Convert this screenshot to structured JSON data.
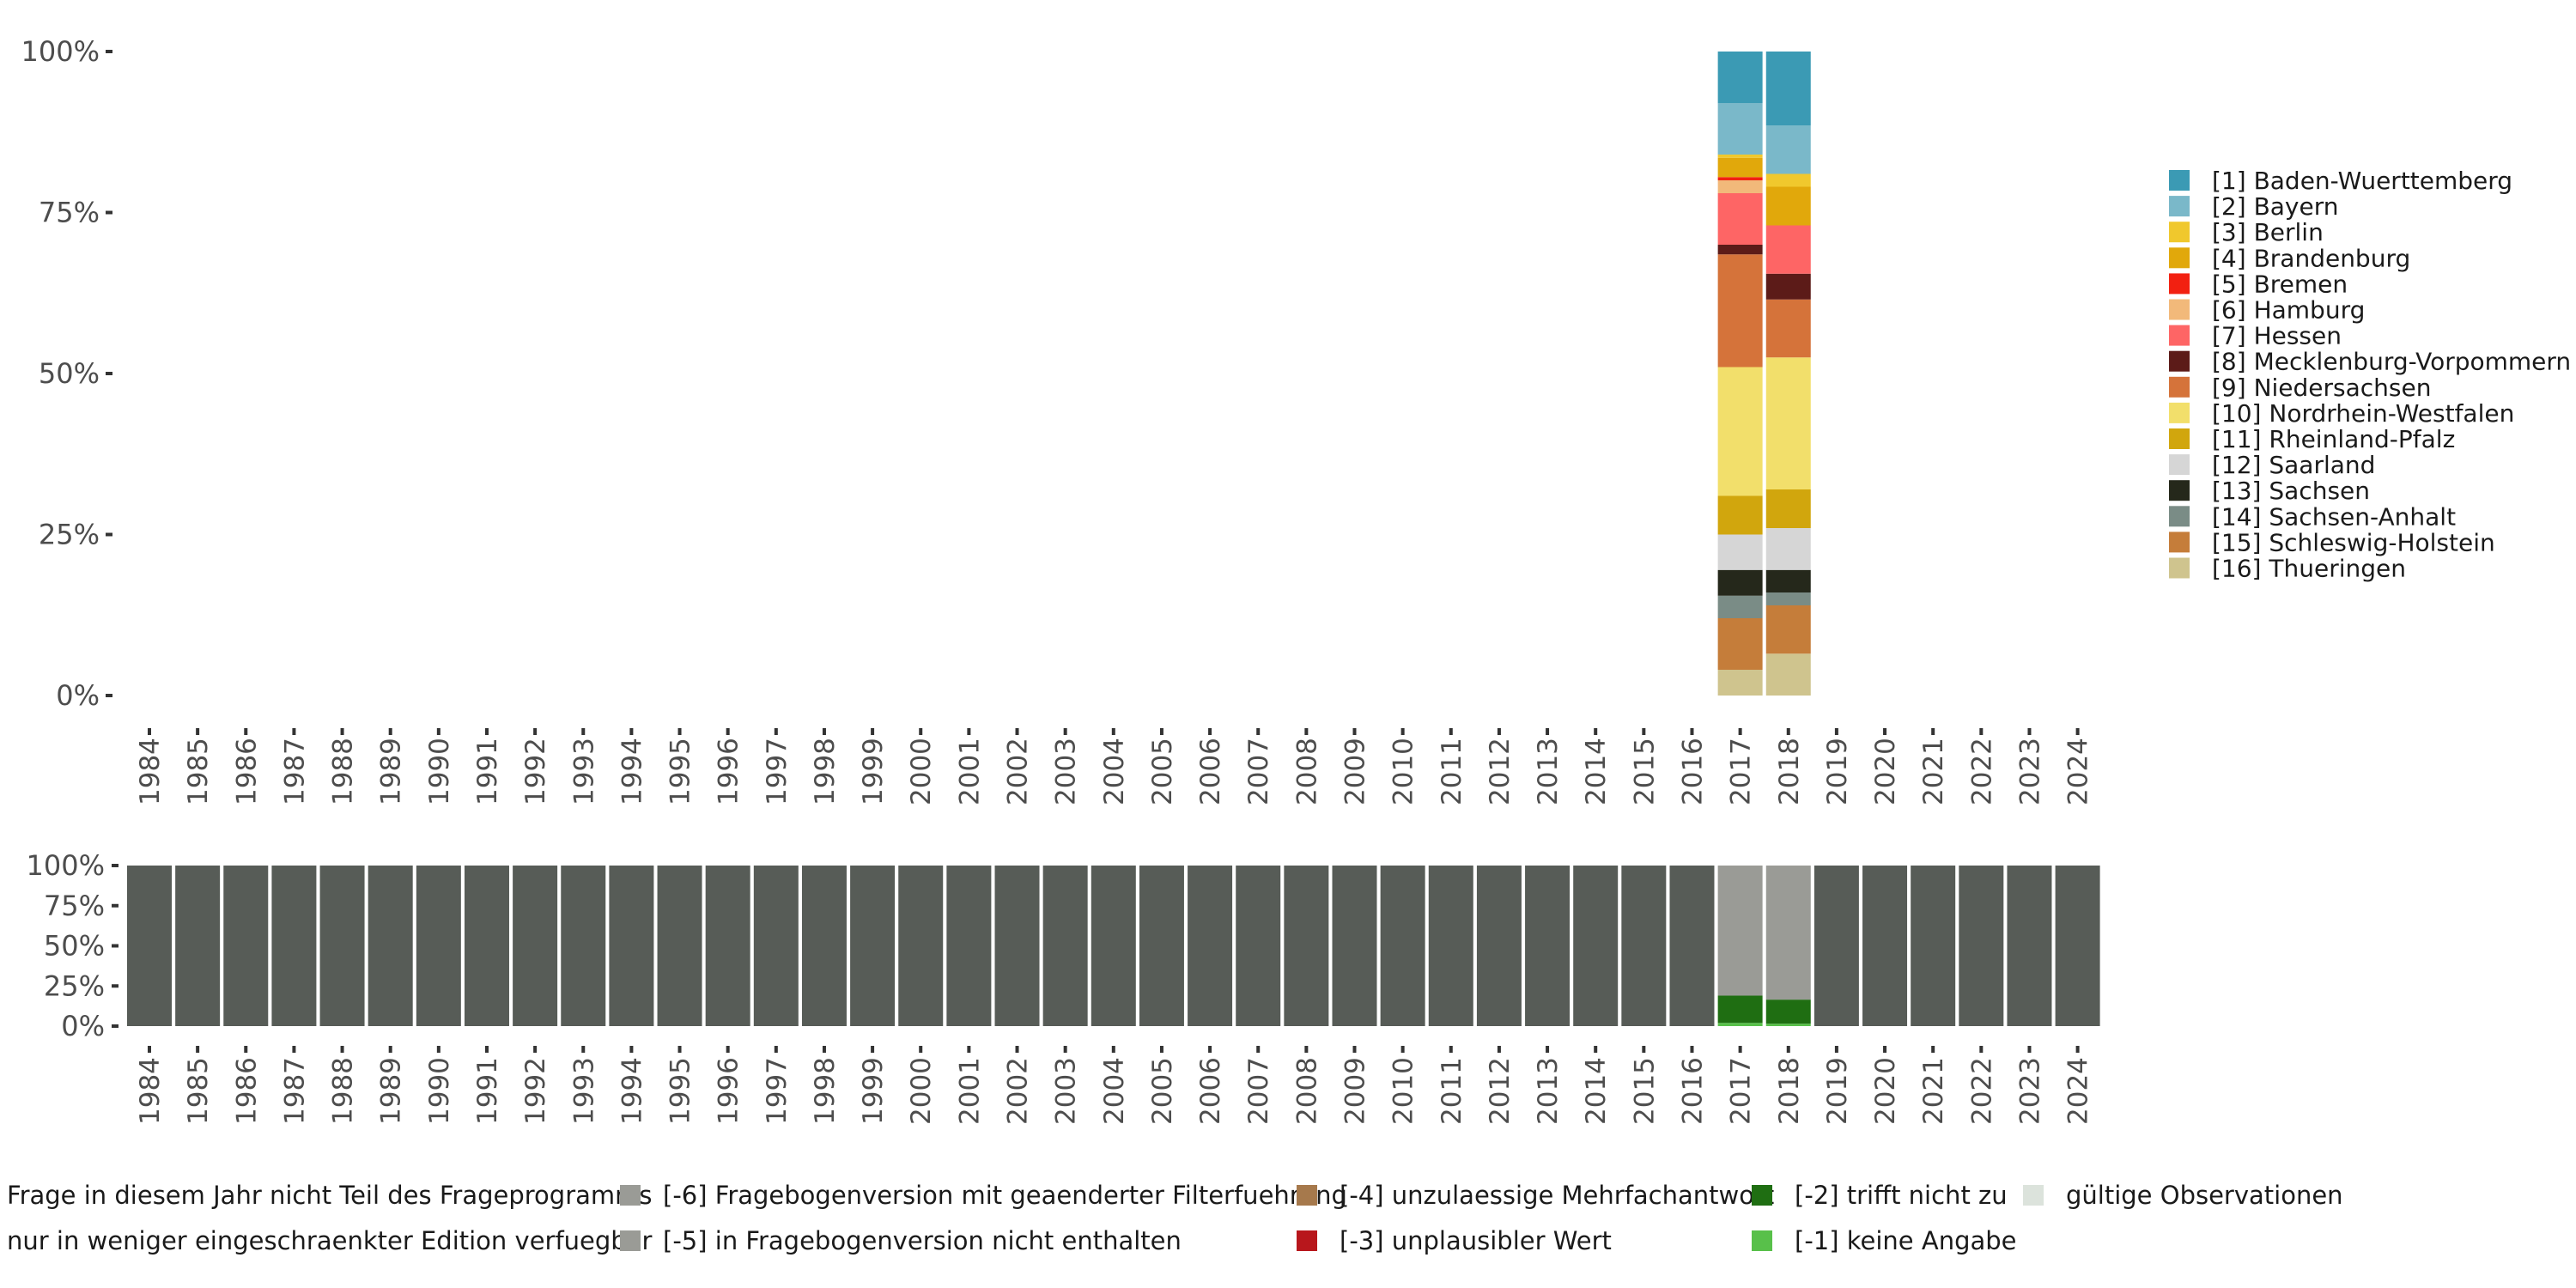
{
  "chart_data": [
    {
      "name": "top",
      "type": "bar",
      "stacked": true,
      "ylim": [
        0,
        100
      ],
      "y_ticks": [
        "0%",
        "25%",
        "50%",
        "75%",
        "100%"
      ],
      "categories": [
        "1984",
        "1985",
        "1986",
        "1987",
        "1988",
        "1989",
        "1990",
        "1991",
        "1992",
        "1993",
        "1994",
        "1995",
        "1996",
        "1997",
        "1998",
        "1999",
        "2000",
        "2001",
        "2002",
        "2003",
        "2004",
        "2005",
        "2006",
        "2007",
        "2008",
        "2009",
        "2010",
        "2011",
        "2012",
        "2013",
        "2014",
        "2015",
        "2016",
        "2017",
        "2018",
        "2019",
        "2020",
        "2021",
        "2022",
        "2023",
        "2024"
      ],
      "series": [
        {
          "name": "[16] Thueringen",
          "color": "#cfc48e",
          "values": {
            "2017": 4.0,
            "2018": 6.5
          }
        },
        {
          "name": "[15] Schleswig-Holstein",
          "color": "#c57d3a",
          "values": {
            "2017": 8.0,
            "2018": 7.5
          }
        },
        {
          "name": "[14] Sachsen-Anhalt",
          "color": "#7a8c86",
          "values": {
            "2017": 3.5,
            "2018": 2.0
          }
        },
        {
          "name": "[13] Sachsen",
          "color": "#25281b",
          "values": {
            "2017": 4.0,
            "2018": 3.5
          }
        },
        {
          "name": "[12] Saarland",
          "color": "#d6d6d6",
          "values": {
            "2017": 5.5,
            "2018": 6.5
          }
        },
        {
          "name": "[11] Rheinland-Pfalz",
          "color": "#d1a60d",
          "values": {
            "2017": 6.0,
            "2018": 6.0
          }
        },
        {
          "name": "[10] Nordrhein-Westfalen",
          "color": "#f2df6b",
          "values": {
            "2017": 20.0,
            "2018": 20.5
          }
        },
        {
          "name": "[9] Niedersachsen",
          "color": "#d5733a",
          "values": {
            "2017": 17.5,
            "2018": 9.0
          }
        },
        {
          "name": "[8] Mecklenburg-Vorpommern",
          "color": "#5c1b18",
          "values": {
            "2017": 1.5,
            "2018": 4.0
          }
        },
        {
          "name": "[7] Hessen",
          "color": "#fe6565",
          "values": {
            "2017": 8.0,
            "2018": 7.5
          }
        },
        {
          "name": "[6] Hamburg",
          "color": "#f2b97a",
          "values": {
            "2017": 2.0,
            "2018": 0.0
          }
        },
        {
          "name": "[5] Bremen",
          "color": "#f22011",
          "values": {
            "2017": 0.5,
            "2018": 0.0
          }
        },
        {
          "name": "[4] Brandenburg",
          "color": "#e1a80b",
          "values": {
            "2017": 3.0,
            "2018": 6.0
          }
        },
        {
          "name": "[3] Berlin",
          "color": "#f0c82d",
          "values": {
            "2017": 0.5,
            "2018": 2.0
          }
        },
        {
          "name": "[2] Bayern",
          "color": "#7ab8c9",
          "values": {
            "2017": 8.0,
            "2018": 7.5
          }
        },
        {
          "name": "[1] Baden-Wuerttemberg",
          "color": "#3b9ab4",
          "values": {
            "2017": 8.0,
            "2018": 11.5
          }
        }
      ]
    },
    {
      "name": "bottom",
      "type": "bar",
      "stacked": true,
      "ylim": [
        0,
        100
      ],
      "y_ticks": [
        "0%",
        "25%",
        "50%",
        "75%",
        "100%"
      ],
      "categories": [
        "1984",
        "1985",
        "1986",
        "1987",
        "1988",
        "1989",
        "1990",
        "1991",
        "1992",
        "1993",
        "1994",
        "1995",
        "1996",
        "1997",
        "1998",
        "1999",
        "2000",
        "2001",
        "2002",
        "2003",
        "2004",
        "2005",
        "2006",
        "2007",
        "2008",
        "2009",
        "2010",
        "2011",
        "2012",
        "2013",
        "2014",
        "2015",
        "2016",
        "2017",
        "2018",
        "2019",
        "2020",
        "2021",
        "2022",
        "2023",
        "2024"
      ],
      "default_stack": [
        {
          "series": "Frage in diesem Jahr nicht Teil des Frageprogramms",
          "value": 100
        }
      ],
      "stacks": {
        "2017": [
          {
            "series": "[-1] keine Angabe",
            "value": 2
          },
          {
            "series": "[-2] trifft nicht zu",
            "value": 17
          },
          {
            "series": "[-5] in Fragebogenversion nicht enthalten",
            "value": 81
          }
        ],
        "2018": [
          {
            "series": "[-1] keine Angabe",
            "value": 1.5
          },
          {
            "series": "[-2] trifft nicht zu",
            "value": 15
          },
          {
            "series": "[-5] in Fragebogenversion nicht enthalten",
            "value": 83.5
          }
        ]
      }
    }
  ],
  "legend_top": [
    {
      "label": "[1] Baden-Wuerttemberg",
      "color": "#3b9ab4"
    },
    {
      "label": "[2] Bayern",
      "color": "#7ab8c9"
    },
    {
      "label": "[3] Berlin",
      "color": "#f0c82d"
    },
    {
      "label": "[4] Brandenburg",
      "color": "#e1a80b"
    },
    {
      "label": "[5] Bremen",
      "color": "#f22011"
    },
    {
      "label": "[6] Hamburg",
      "color": "#f2b97a"
    },
    {
      "label": "[7] Hessen",
      "color": "#fe6565"
    },
    {
      "label": "[8] Mecklenburg-Vorpommern",
      "color": "#5c1b18"
    },
    {
      "label": "[9] Niedersachsen",
      "color": "#d5733a"
    },
    {
      "label": "[10] Nordrhein-Westfalen",
      "color": "#f2df6b"
    },
    {
      "label": "[11] Rheinland-Pfalz",
      "color": "#d1a60d"
    },
    {
      "label": "[12] Saarland",
      "color": "#d6d6d6"
    },
    {
      "label": "[13] Sachsen",
      "color": "#25281b"
    },
    {
      "label": "[14] Sachsen-Anhalt",
      "color": "#7a8c86"
    },
    {
      "label": "[15] Schleswig-Holstein",
      "color": "#c57d3a"
    },
    {
      "label": "[16] Thueringen",
      "color": "#cfc48e"
    }
  ],
  "legend_bottom": [
    {
      "label": "Frage in diesem Jahr nicht Teil des Frageprogramms",
      "color": "#575c57"
    },
    {
      "label": "nur in weniger eingeschraenkter Edition verfuegbar",
      "color": "#5a3a1e"
    },
    {
      "label": "[-6] Fragebogenversion mit geaenderter Filterfuehrung",
      "color": "#9a9b96"
    },
    {
      "label": "[-5] in Fragebogenversion nicht enthalten",
      "color": "#9a9b96"
    },
    {
      "label": "[-4] unzulaessige Mehrfachantwort",
      "color": "#a6794c"
    },
    {
      "label": "[-3] unplausibler Wert",
      "color": "#b8171c"
    },
    {
      "label": "[-2] trifft nicht zu",
      "color": "#1f6e12"
    },
    {
      "label": "[-1] keine Angabe",
      "color": "#58c04a"
    },
    {
      "label": "gültige Observationen",
      "color": "#dce3dc"
    }
  ]
}
